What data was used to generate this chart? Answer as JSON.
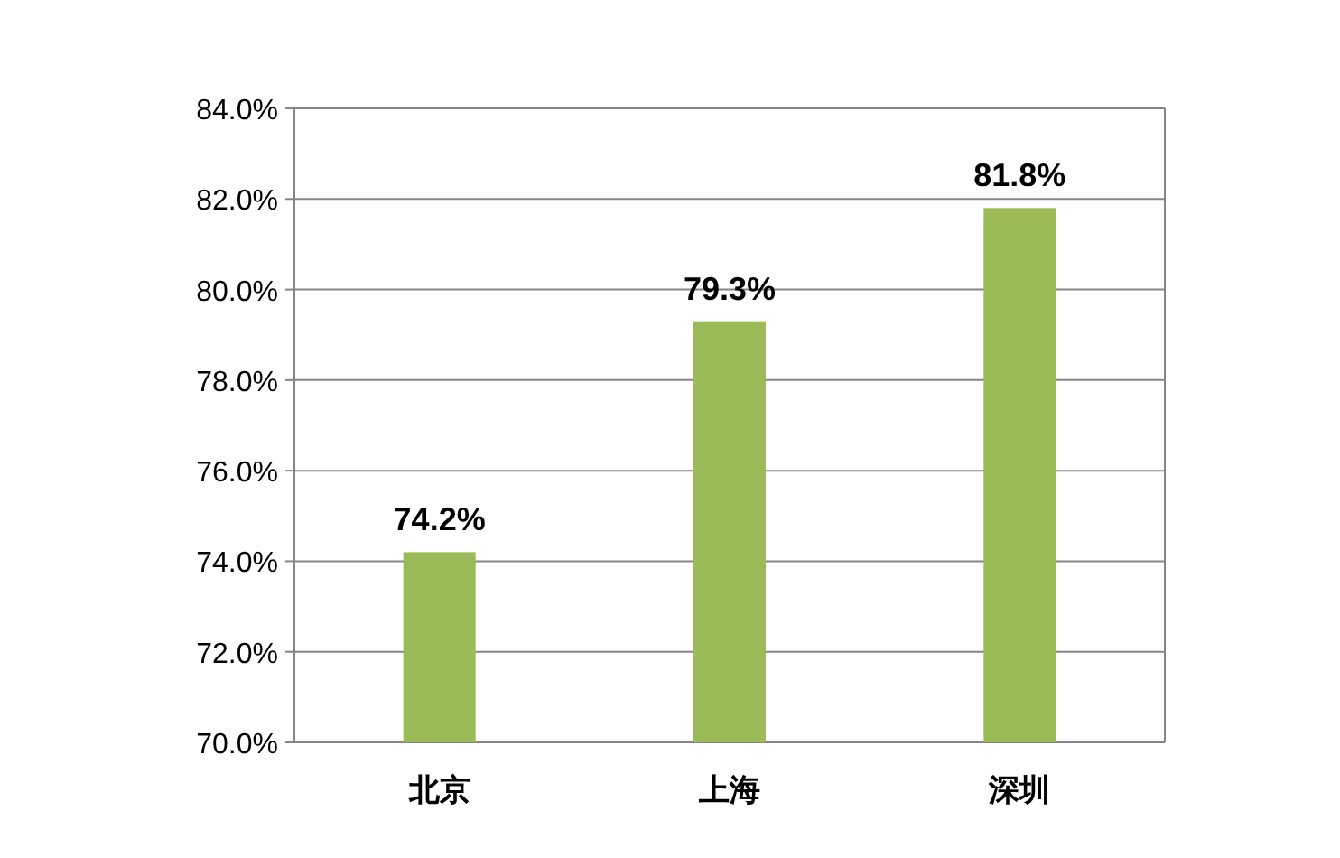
{
  "chart_data": {
    "type": "bar",
    "categories": [
      "北京",
      "上海",
      "深圳"
    ],
    "values": [
      74.2,
      79.3,
      81.8
    ],
    "value_labels": [
      "74.2%",
      "79.3%",
      "81.8%"
    ],
    "color": "#9bbb59",
    "ylim": [
      70,
      84
    ],
    "yticks": [
      {
        "value": 70,
        "label": "70.0%"
      },
      {
        "value": 72,
        "label": "72.0%"
      },
      {
        "value": 74,
        "label": "74.0%"
      },
      {
        "value": 76,
        "label": "76.0%"
      },
      {
        "value": 78,
        "label": "78.0%"
      },
      {
        "value": 80,
        "label": "80.0%"
      },
      {
        "value": 82,
        "label": "82.0%"
      },
      {
        "value": 84,
        "label": "84.0%"
      }
    ],
    "grid": "y"
  }
}
